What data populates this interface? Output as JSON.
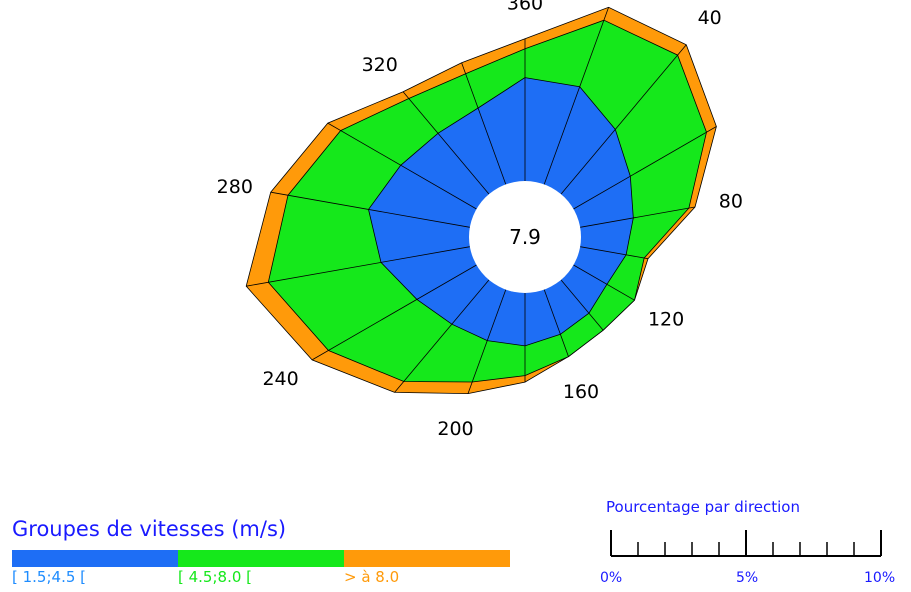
{
  "chart_data": {
    "type": "wind-rose",
    "calm_value": "7.9",
    "direction_labels": [
      "360",
      "40",
      "80",
      "120",
      "160",
      "200",
      "240",
      "280",
      "320"
    ],
    "directions_deg": [
      0,
      20,
      40,
      60,
      80,
      100,
      120,
      140,
      160,
      180,
      200,
      220,
      240,
      260,
      280,
      300,
      320,
      340
    ],
    "series": [
      {
        "name": "[ 1.5;4.5 [",
        "color": "#1e6ef5",
        "cumulative_percent": [
          3.83,
          3.85,
          3.13,
          2.43,
          2.0,
          1.73,
          1.43,
          1.61,
          1.76,
          1.96,
          2.01,
          2.14,
          2.55,
          3.34,
          3.81,
          3.24,
          2.94,
          3.01
        ]
      },
      {
        "name": "[ 4.5;8.0 [",
        "color": "#15e81b",
        "cumulative_percent": [
          4.9,
          6.47,
          6.72,
          5.69,
          4.09,
          2.41,
          2.61,
          2.43,
          2.64,
          3.06,
          3.64,
          4.91,
          6.33,
          7.58,
          6.84,
          5.81,
          4.62,
          4.36
        ]
      },
      {
        "name": "> à 8.0",
        "color": "#ff9a0a",
        "cumulative_percent": [
          5.27,
          6.98,
          7.22,
          6.11,
          4.32,
          2.55,
          2.61,
          2.43,
          2.64,
          3.3,
          4.1,
          5.44,
          7.03,
          8.41,
          7.49,
          6.36,
          4.95,
          4.79
        ]
      }
    ],
    "scale_max_percent": 10
  },
  "legend": {
    "title": "Groupes de vitesses (m/s)",
    "items": [
      {
        "label": "[ 1.5;4.5 [",
        "color": "#1e6ef5",
        "text_color": "#1e8cff"
      },
      {
        "label": "[ 4.5;8.0 [",
        "color": "#15e81b",
        "text_color": "#15e81b"
      },
      {
        "label": "> à 8.0",
        "color": "#ff9a0a",
        "text_color": "#ff9a0a"
      }
    ]
  },
  "scale": {
    "title": "Pourcentage par direction",
    "labels": [
      "0%",
      "5%",
      "10%"
    ]
  }
}
